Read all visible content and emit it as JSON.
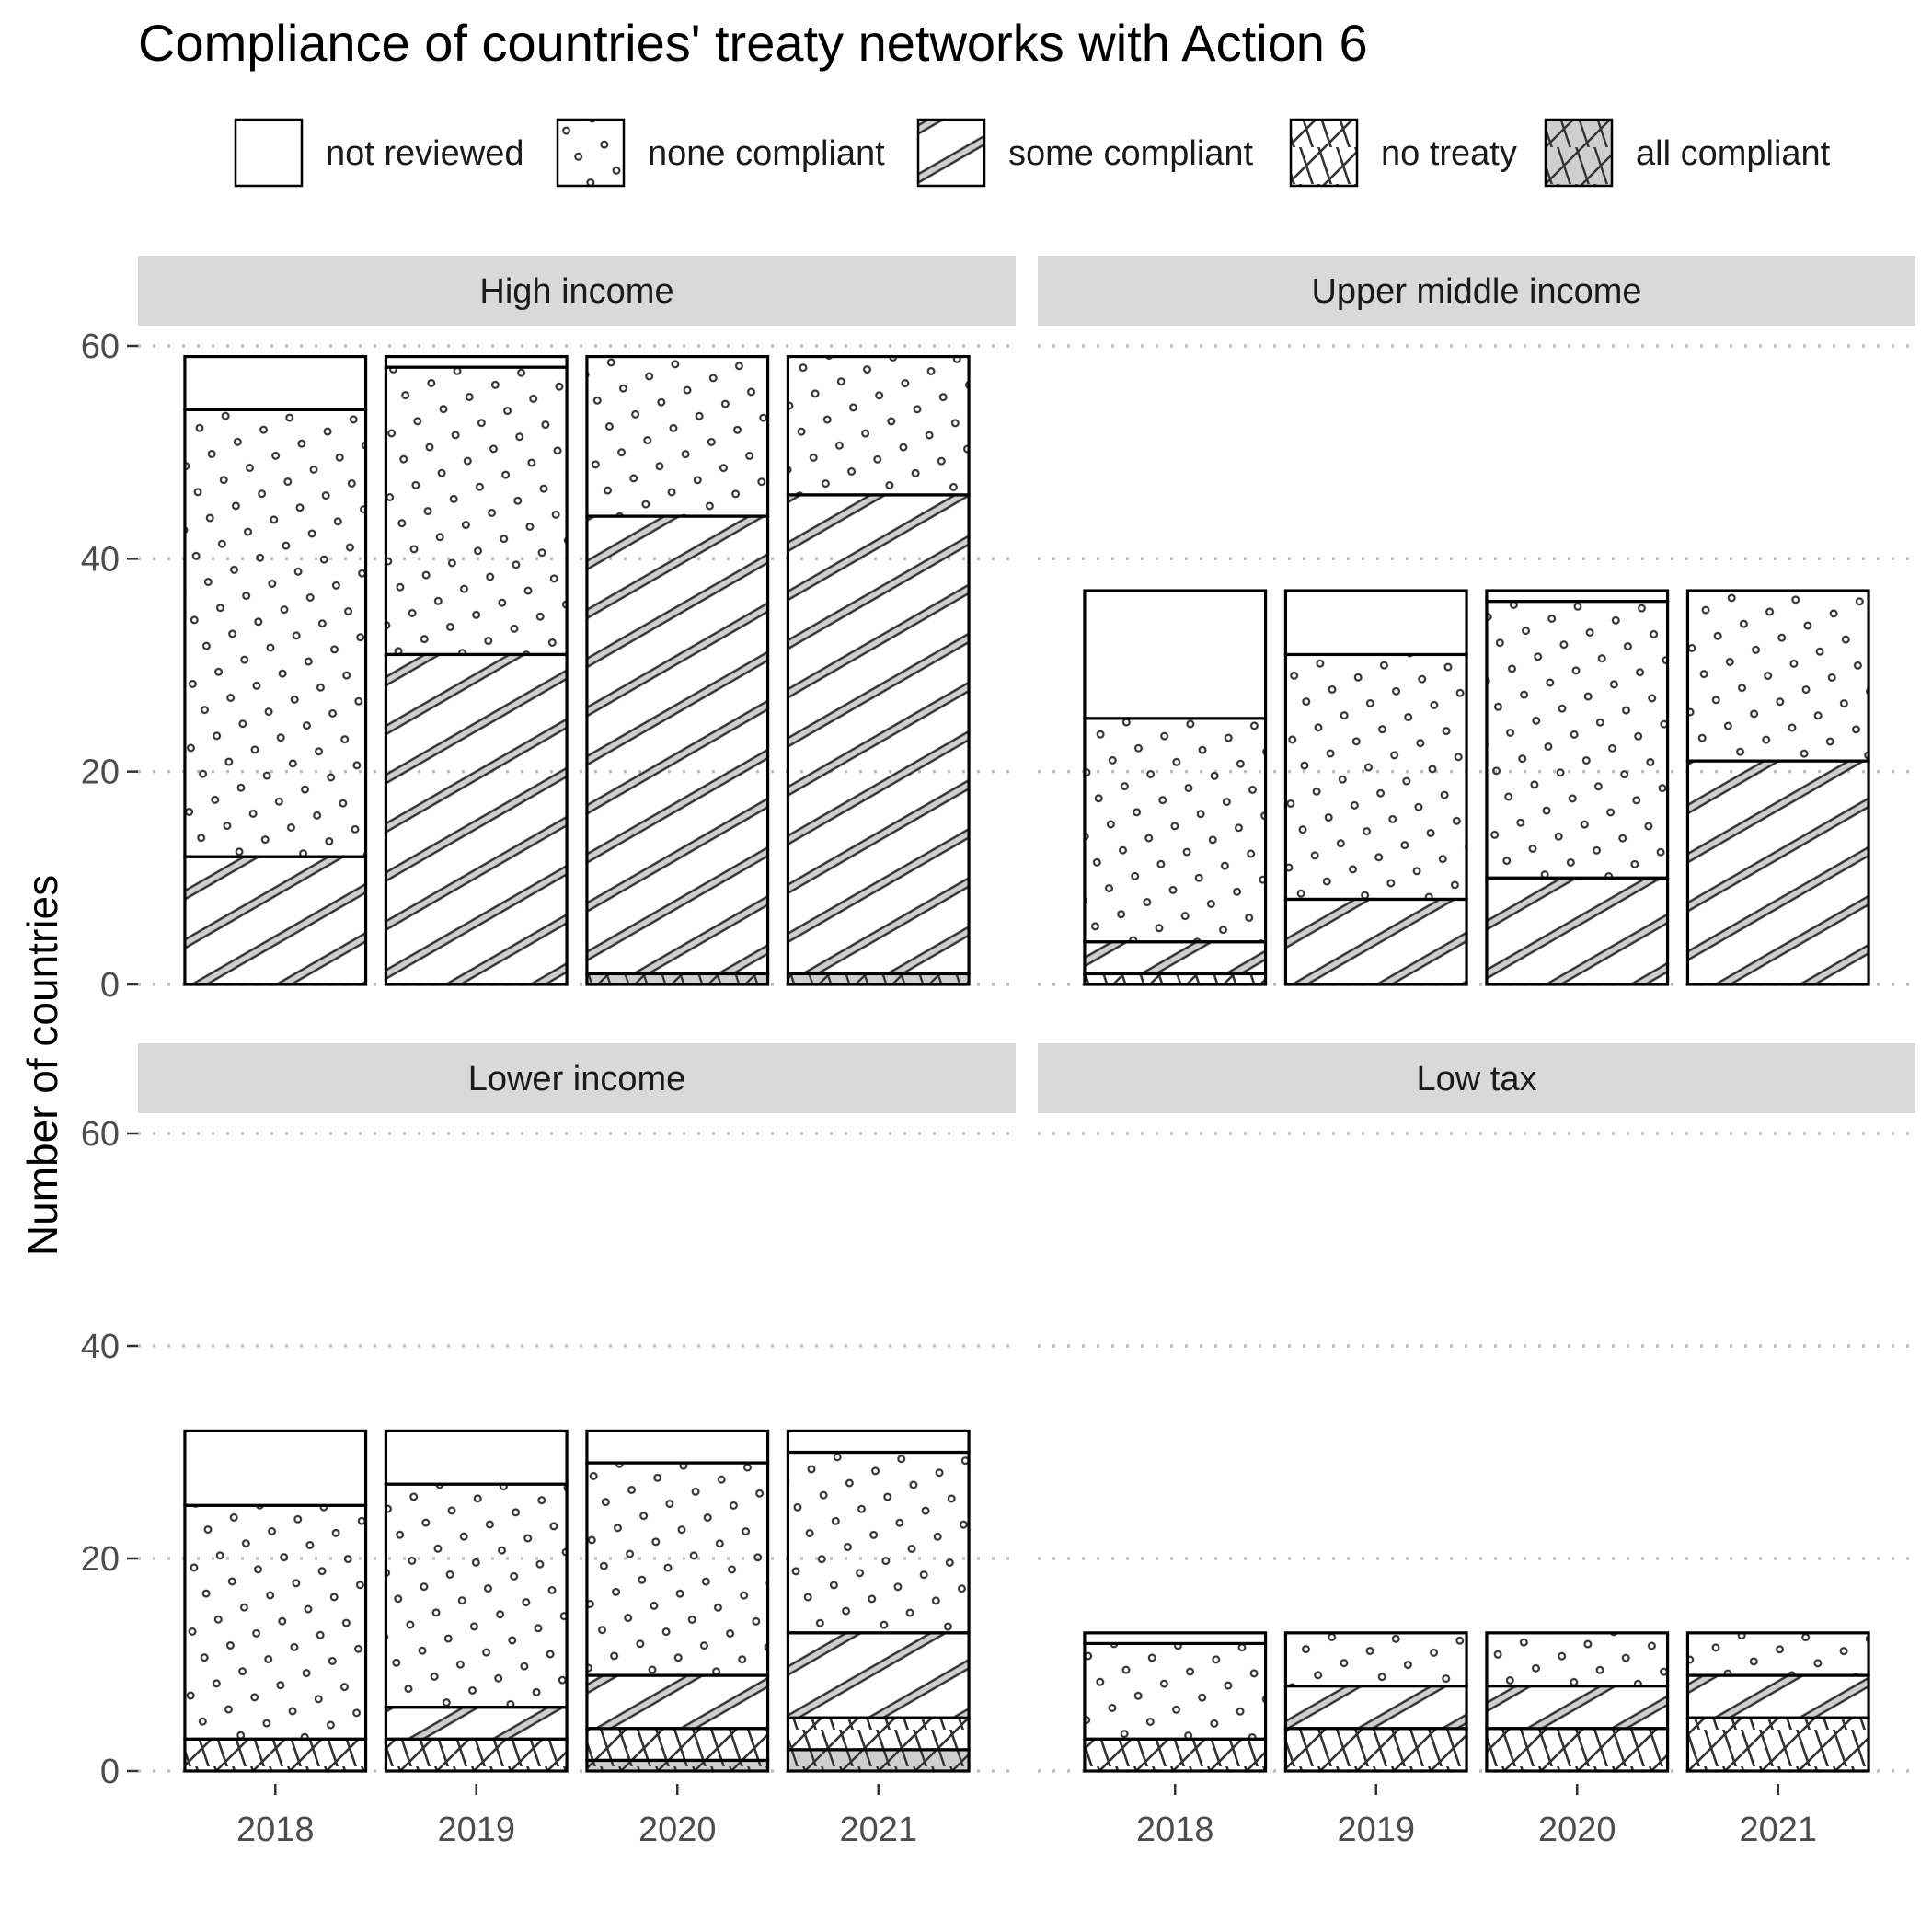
{
  "chart_data": {
    "type": "bar",
    "title": "Compliance of countries' treaty networks with Action 6",
    "ylabel": "Number of countries",
    "xlabel": "",
    "ylim": [
      0,
      60
    ],
    "yticks": [
      0,
      20,
      40,
      60
    ],
    "categories": [
      "2018",
      "2019",
      "2020",
      "2021"
    ],
    "stacked": true,
    "grid": "horizontal dotted",
    "legend_position": "top",
    "legend": [
      {
        "key": "not_reviewed",
        "label": "not reviewed",
        "pattern": "blank"
      },
      {
        "key": "none_compliant",
        "label": "none compliant",
        "pattern": "dots"
      },
      {
        "key": "some_compliant",
        "label": "some compliant",
        "pattern": "stripes"
      },
      {
        "key": "no_treaty",
        "label": "no treaty",
        "pattern": "crosshatch"
      },
      {
        "key": "all_compliant",
        "label": "all compliant",
        "pattern": "grey-crosshatch"
      }
    ],
    "stack_order": [
      "all_compliant",
      "no_treaty",
      "some_compliant",
      "none_compliant",
      "not_reviewed"
    ],
    "panels": [
      {
        "name": "High income",
        "series": {
          "all_compliant": [
            0,
            0,
            1,
            1
          ],
          "no_treaty": [
            0,
            0,
            0,
            0
          ],
          "some_compliant": [
            12,
            31,
            43,
            45
          ],
          "none_compliant": [
            42,
            27,
            15,
            13
          ],
          "not_reviewed": [
            5,
            1,
            0,
            0
          ]
        }
      },
      {
        "name": "Upper middle income",
        "series": {
          "all_compliant": [
            0,
            0,
            0,
            0
          ],
          "no_treaty": [
            1,
            0,
            0,
            0
          ],
          "some_compliant": [
            3,
            8,
            10,
            21
          ],
          "none_compliant": [
            21,
            23,
            26,
            16
          ],
          "not_reviewed": [
            12,
            6,
            1,
            0
          ]
        }
      },
      {
        "name": "Lower income",
        "series": {
          "all_compliant": [
            0,
            0,
            1,
            2
          ],
          "no_treaty": [
            3,
            3,
            3,
            3
          ],
          "some_compliant": [
            0,
            3,
            5,
            8
          ],
          "none_compliant": [
            22,
            21,
            20,
            17
          ],
          "not_reviewed": [
            7,
            5,
            3,
            2
          ]
        }
      },
      {
        "name": "Low tax",
        "series": {
          "all_compliant": [
            0,
            0,
            0,
            0
          ],
          "no_treaty": [
            3,
            4,
            4,
            5
          ],
          "some_compliant": [
            0,
            4,
            4,
            4
          ],
          "none_compliant": [
            9,
            5,
            5,
            4
          ],
          "not_reviewed": [
            1,
            0,
            0,
            0
          ]
        }
      }
    ]
  },
  "colors": {
    "strip_background": "#d9d9d9",
    "grid": "#bdbdbd",
    "bar_outline": "#000000",
    "pattern_line": "#333333",
    "pattern_fill_grey": "#cfcfcf"
  }
}
